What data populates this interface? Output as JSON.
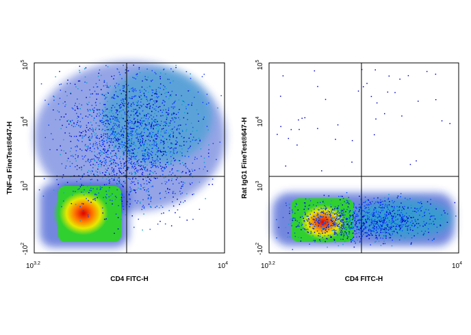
{
  "panels": [
    {
      "y_label": "TNF-α FineTest®647-H",
      "x_label": "CD4 FITC-H",
      "y_ticks": [
        {
          "base": "10",
          "exp": "5"
        },
        {
          "base": "10",
          "exp": "4"
        },
        {
          "base": "10",
          "exp": "3"
        },
        {
          "base": "-10",
          "exp": "2"
        }
      ],
      "x_ticks": [
        {
          "base": "10",
          "exp": "3.2"
        },
        {
          "base": "10",
          "exp": "4"
        }
      ]
    },
    {
      "y_label": "Rat IgG1 FineTest®647-H",
      "x_label": "CD4 FITC-H",
      "y_ticks": [
        {
          "base": "10",
          "exp": "5"
        },
        {
          "base": "10",
          "exp": "4"
        },
        {
          "base": "10",
          "exp": "3"
        },
        {
          "base": "-10",
          "exp": "2"
        }
      ],
      "x_ticks": [
        {
          "base": "10",
          "exp": "3.2"
        },
        {
          "base": "10",
          "exp": "4"
        }
      ]
    }
  ]
}
